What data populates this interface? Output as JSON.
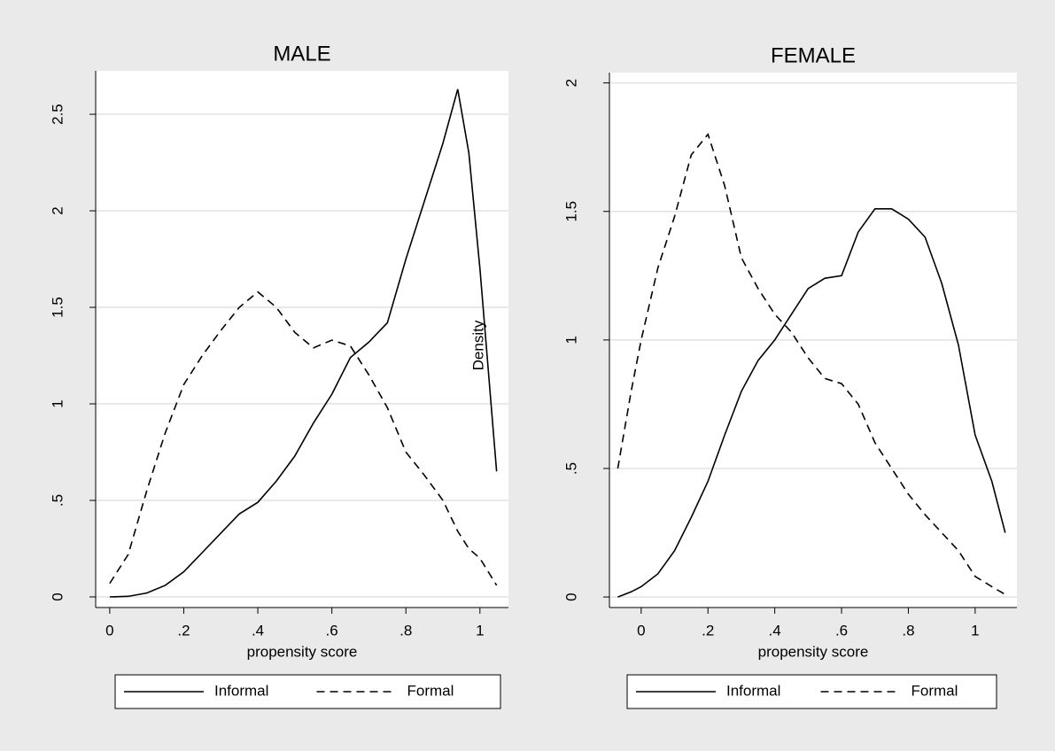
{
  "chart_data": [
    {
      "type": "line",
      "title": "MALE",
      "x_label": "propensity score",
      "annotation": "Density",
      "x": [
        0,
        0.05,
        0.1,
        0.15,
        0.2,
        0.25,
        0.3,
        0.35,
        0.4,
        0.45,
        0.5,
        0.55,
        0.6,
        0.65,
        0.7,
        0.75,
        0.8,
        0.85,
        0.9,
        0.94,
        0.97,
        1.0,
        1.045
      ],
      "series": [
        {
          "name": "Informal",
          "color": "#000000",
          "dash": false,
          "values": [
            0,
            0.003,
            0.02,
            0.06,
            0.13,
            0.23,
            0.33,
            0.43,
            0.49,
            0.6,
            0.73,
            0.9,
            1.05,
            1.24,
            1.32,
            1.42,
            1.75,
            2.05,
            2.35,
            2.63,
            2.3,
            1.7,
            0.65
          ]
        },
        {
          "name": "Formal",
          "color": "#000000",
          "dash": true,
          "values": [
            0.07,
            0.22,
            0.55,
            0.85,
            1.1,
            1.25,
            1.38,
            1.5,
            1.58,
            1.5,
            1.37,
            1.29,
            1.33,
            1.3,
            1.15,
            0.98,
            0.75,
            0.63,
            0.5,
            0.34,
            0.25,
            0.2,
            0.06
          ]
        }
      ],
      "xlim": [
        -0.038,
        1.077
      ],
      "ylim": [
        -0.055,
        2.725
      ],
      "xticks": [
        0,
        {
          "value": 0.2,
          "label": ".2"
        },
        {
          "value": 0.4,
          "label": ".4"
        },
        {
          "value": 0.6,
          "label": ".6"
        },
        {
          "value": 0.8,
          "label": ".8"
        },
        1
      ],
      "yticks": [
        0,
        {
          "value": 0.5,
          "label": ".5"
        },
        1,
        1.5,
        2,
        2.5
      ],
      "grid": true
    },
    {
      "type": "line",
      "title": "FEMALE",
      "x_label": "propensity score",
      "x": [
        -0.07,
        -0.03,
        0,
        0.05,
        0.1,
        0.15,
        0.2,
        0.25,
        0.3,
        0.35,
        0.4,
        0.45,
        0.5,
        0.55,
        0.6,
        0.65,
        0.7,
        0.75,
        0.8,
        0.85,
        0.9,
        0.95,
        1.0,
        1.05,
        1.09
      ],
      "series": [
        {
          "name": "Informal",
          "color": "#000000",
          "dash": false,
          "values": [
            0,
            0.02,
            0.04,
            0.09,
            0.18,
            0.31,
            0.45,
            0.63,
            0.8,
            0.92,
            1.0,
            1.1,
            1.2,
            1.24,
            1.25,
            1.42,
            1.51,
            1.51,
            1.47,
            1.4,
            1.22,
            0.98,
            0.63,
            0.45,
            0.25
          ]
        },
        {
          "name": "Formal",
          "color": "#000000",
          "dash": true,
          "values": [
            0.5,
            0.8,
            1.0,
            1.28,
            1.48,
            1.72,
            1.8,
            1.6,
            1.32,
            1.2,
            1.1,
            1.03,
            0.93,
            0.85,
            0.83,
            0.75,
            0.6,
            0.5,
            0.4,
            0.32,
            0.25,
            0.18,
            0.08,
            0.04,
            0.01
          ]
        }
      ],
      "xlim": [
        -0.095,
        1.125
      ],
      "ylim": [
        -0.041,
        2.04
      ],
      "xticks": [
        0,
        {
          "value": 0.2,
          "label": ".2"
        },
        {
          "value": 0.4,
          "label": ".4"
        },
        {
          "value": 0.6,
          "label": ".6"
        },
        {
          "value": 0.8,
          "label": ".8"
        },
        1
      ],
      "yticks": [
        0,
        {
          "value": 0.5,
          "label": ".5"
        },
        1,
        1.5,
        2
      ],
      "grid": true
    }
  ]
}
